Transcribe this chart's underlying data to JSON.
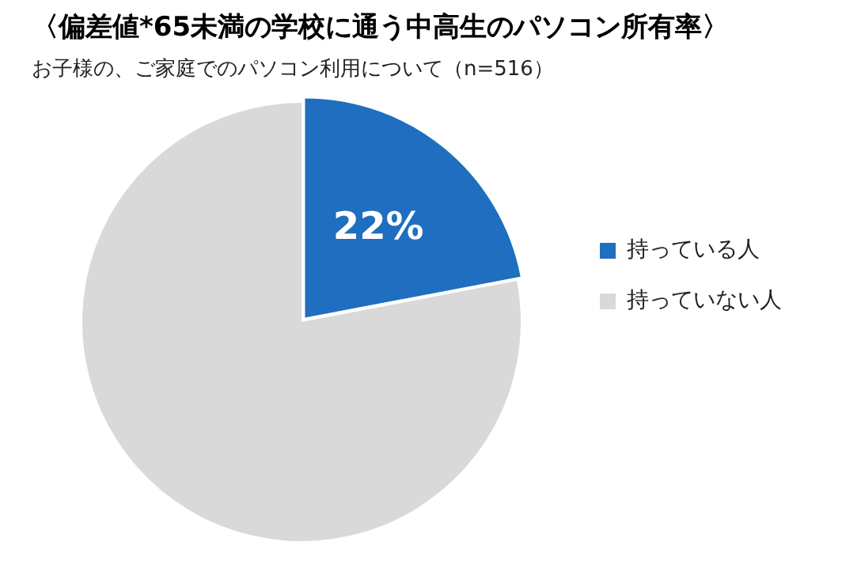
{
  "chart_data": {
    "type": "pie",
    "title": "〈偏差値*65未満の学校に通う中高生のパソコン所有率〉",
    "subtitle": "お子様の、ご家庭でのパソコン利用について（n=516）",
    "categories": [
      "持っている人",
      "持っていない人"
    ],
    "values": [
      22,
      78
    ],
    "colors": [
      "#1f6ebf",
      "#d9d9d9"
    ],
    "value_labels": [
      "22%",
      null
    ],
    "legend": "right"
  }
}
